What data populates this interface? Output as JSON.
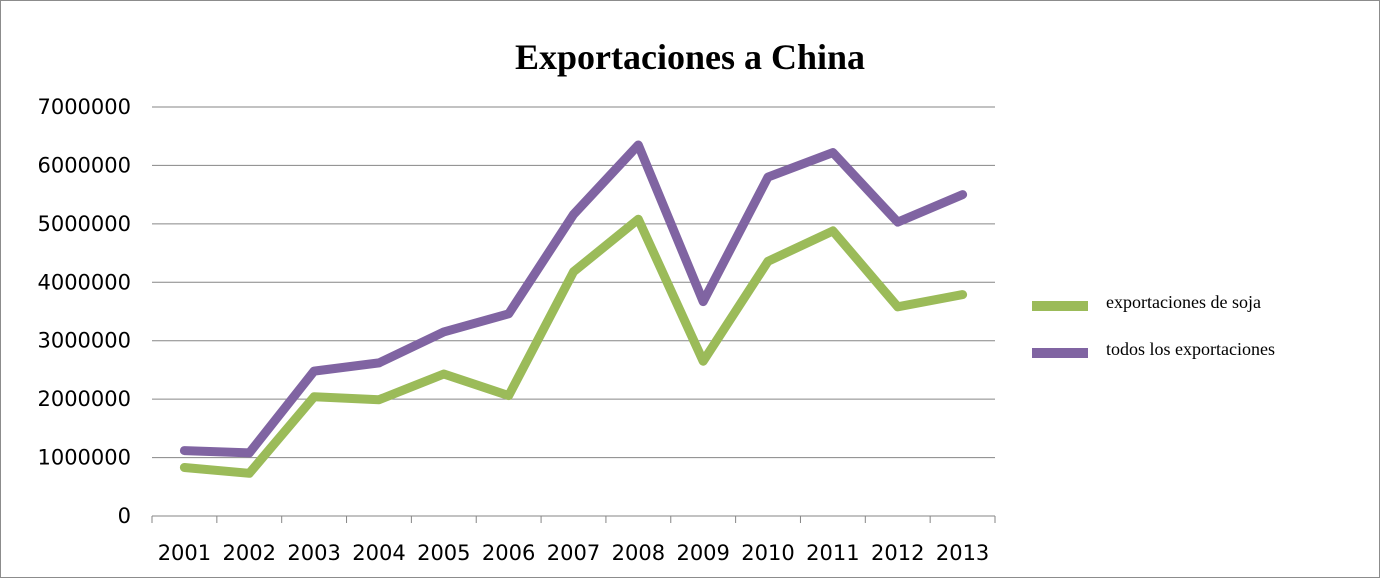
{
  "chart_data": {
    "type": "line",
    "title": "Exportaciones a China",
    "xlabel": "",
    "ylabel": "",
    "categories": [
      "2001",
      "2002",
      "2003",
      "2004",
      "2005",
      "2006",
      "2007",
      "2008",
      "2009",
      "2010",
      "2011",
      "2012",
      "2013"
    ],
    "y_ticks": [
      "0",
      "1000000",
      "2000000",
      "3000000",
      "4000000",
      "5000000",
      "6000000",
      "7000000"
    ],
    "ylim": [
      0,
      7000000
    ],
    "grid": "horizontal",
    "legend_position": "right",
    "series": [
      {
        "name": "exportaciones de soja",
        "color": "#9bbb59",
        "values": [
          830000,
          730000,
          2040000,
          1990000,
          2430000,
          2060000,
          4180000,
          5080000,
          2650000,
          4360000,
          4880000,
          3580000,
          3790000
        ]
      },
      {
        "name": "todos los exportaciones",
        "color": "#8064a2",
        "values": [
          1120000,
          1080000,
          2480000,
          2620000,
          3150000,
          3460000,
          5160000,
          6350000,
          3670000,
          5800000,
          6220000,
          5030000,
          5500000
        ]
      }
    ]
  }
}
